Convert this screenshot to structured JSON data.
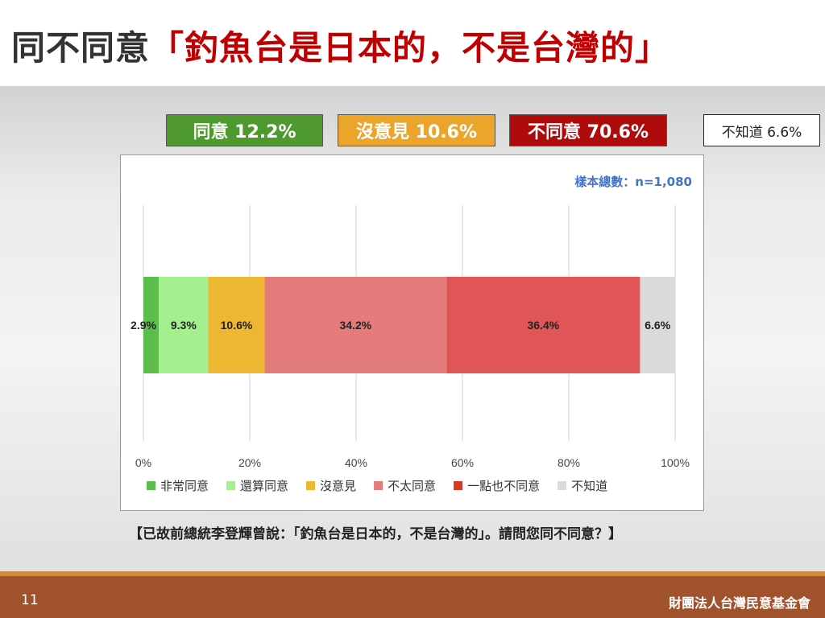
{
  "title": {
    "prefix": "同不同意",
    "quote": "「釣魚台是日本的，不是台灣的」"
  },
  "summary": [
    {
      "label": "同意 12.2%",
      "bg": "#4e9a2e",
      "fg": "#ffffff"
    },
    {
      "label": "沒意見 10.6%",
      "bg": "#eba52a",
      "fg": "#ffffff"
    },
    {
      "label": "不同意 70.6%",
      "bg": "#b00b0b",
      "fg": "#ffffff"
    },
    {
      "label": "不知道 6.6%",
      "bg": "#ffffff",
      "fg": "#222222"
    }
  ],
  "sample_note": "樣本總數：n=1,080",
  "chart_data": {
    "type": "bar",
    "orientation": "horizontal-stacked",
    "xlim": [
      0,
      100
    ],
    "ticks": [
      "0%",
      "20%",
      "40%",
      "60%",
      "80%",
      "100%"
    ],
    "grid": true,
    "legend_position": "bottom",
    "series": [
      {
        "name": "非常同意",
        "value": 2.9,
        "label": "2.9%",
        "color": "#5cbd4a"
      },
      {
        "name": "還算同意",
        "value": 9.3,
        "label": "9.3%",
        "color": "#a5f08e"
      },
      {
        "name": "沒意見",
        "value": 10.6,
        "label": "10.6%",
        "color": "#eeb731"
      },
      {
        "name": "不太同意",
        "value": 34.2,
        "label": "34.2%",
        "color": "#e47c7c"
      },
      {
        "name": "一點也不同意",
        "value": 36.4,
        "label": "36.4%",
        "color": "#e05656"
      },
      {
        "name": "不知道",
        "value": 6.6,
        "label": "6.6%",
        "color": "#dadada"
      }
    ],
    "legend": [
      {
        "name": "非常同意",
        "color": "#5cbd4a"
      },
      {
        "name": "還算同意",
        "color": "#a5f08e"
      },
      {
        "name": "沒意見",
        "color": "#eeb731"
      },
      {
        "name": "不太同意",
        "color": "#e47c7c"
      },
      {
        "name": "一點也不同意",
        "color": "#d83a1b"
      },
      {
        "name": "不知道",
        "color": "#dadada"
      }
    ]
  },
  "question": "【已故前總統李登輝曾說：「釣魚台是日本的，不是台灣的」。請問您同不同意？】",
  "footer": {
    "page_number": "11",
    "organization": "財團法人台灣民意基金會"
  }
}
